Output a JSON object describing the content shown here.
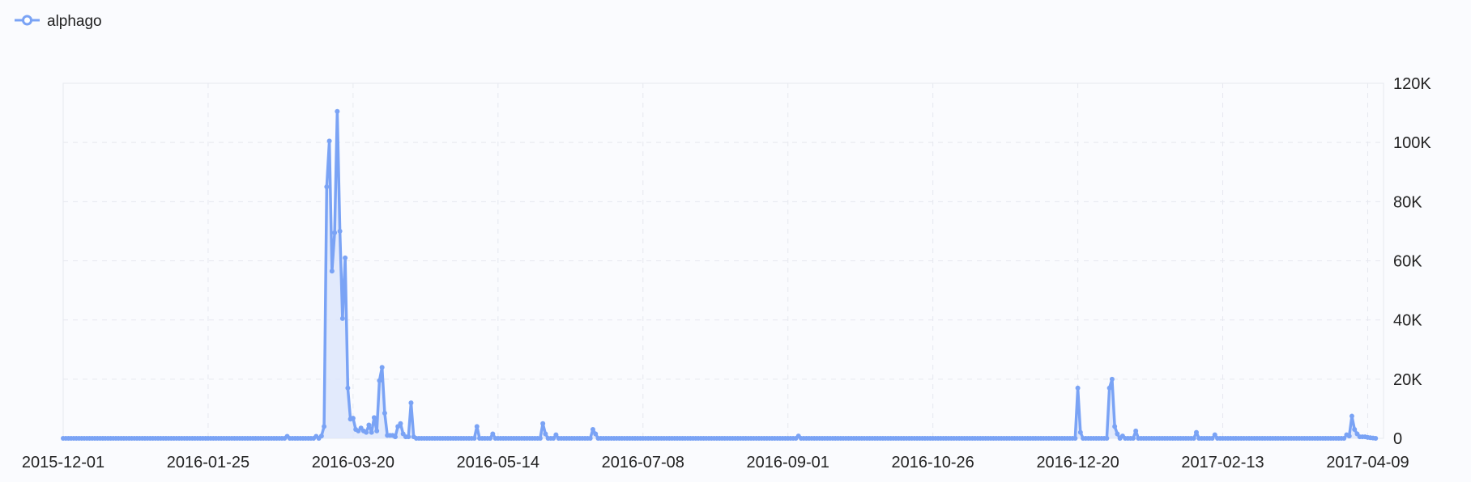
{
  "legend": {
    "series_name": "alphago"
  },
  "colors": {
    "series": "#7aa3f5",
    "area": "#dde6fb",
    "grid": "#e6e8ef",
    "background": "#fafbfe"
  },
  "chart_data": {
    "type": "area",
    "x_type": "date",
    "x_range": [
      "2015-12-01",
      "2017-04-15"
    ],
    "y_range": [
      0,
      120000
    ],
    "x_ticks": [
      "2015-12-01",
      "2016-01-25",
      "2016-03-20",
      "2016-05-14",
      "2016-07-08",
      "2016-09-01",
      "2016-10-26",
      "2016-12-20",
      "2017-02-13",
      "2017-04-09"
    ],
    "y_ticks": [
      {
        "value": 0,
        "label": "0"
      },
      {
        "value": 20000,
        "label": "20K"
      },
      {
        "value": 40000,
        "label": "40K"
      },
      {
        "value": 60000,
        "label": "60K"
      },
      {
        "value": 80000,
        "label": "80K"
      },
      {
        "value": 100000,
        "label": "100K"
      },
      {
        "value": 120000,
        "label": "120K"
      }
    ],
    "grid": true,
    "legend_position": "top-left",
    "series": [
      {
        "name": "alphago",
        "points": [
          [
            "2015-12-01",
            0
          ],
          [
            "2016-02-23",
            0
          ],
          [
            "2016-02-24",
            700
          ],
          [
            "2016-02-25",
            0
          ],
          [
            "2016-03-05",
            0
          ],
          [
            "2016-03-06",
            700
          ],
          [
            "2016-03-07",
            0
          ],
          [
            "2016-03-08",
            800
          ],
          [
            "2016-03-09",
            4000
          ],
          [
            "2016-03-10",
            85000
          ],
          [
            "2016-03-11",
            100500
          ],
          [
            "2016-03-12",
            56500
          ],
          [
            "2016-03-13",
            69500
          ],
          [
            "2016-03-14",
            110500
          ],
          [
            "2016-03-15",
            70000
          ],
          [
            "2016-03-16",
            40500
          ],
          [
            "2016-03-17",
            61000
          ],
          [
            "2016-03-18",
            17000
          ],
          [
            "2016-03-19",
            6500
          ],
          [
            "2016-03-20",
            6800
          ],
          [
            "2016-03-21",
            3000
          ],
          [
            "2016-03-22",
            2500
          ],
          [
            "2016-03-23",
            3500
          ],
          [
            "2016-03-24",
            2500
          ],
          [
            "2016-03-25",
            2000
          ],
          [
            "2016-03-26",
            4500
          ],
          [
            "2016-03-27",
            2000
          ],
          [
            "2016-03-28",
            7000
          ],
          [
            "2016-03-29",
            2500
          ],
          [
            "2016-03-30",
            19500
          ],
          [
            "2016-03-31",
            24000
          ],
          [
            "2016-04-01",
            8500
          ],
          [
            "2016-04-02",
            1000
          ],
          [
            "2016-04-03",
            1000
          ],
          [
            "2016-04-04",
            1000
          ],
          [
            "2016-04-05",
            500
          ],
          [
            "2016-04-06",
            4000
          ],
          [
            "2016-04-07",
            5000
          ],
          [
            "2016-04-08",
            1500
          ],
          [
            "2016-04-09",
            500
          ],
          [
            "2016-04-10",
            500
          ],
          [
            "2016-04-11",
            12000
          ],
          [
            "2016-04-12",
            500
          ],
          [
            "2016-04-13",
            0
          ],
          [
            "2016-05-05",
            0
          ],
          [
            "2016-05-06",
            4000
          ],
          [
            "2016-05-07",
            0
          ],
          [
            "2016-05-11",
            0
          ],
          [
            "2016-05-12",
            1500
          ],
          [
            "2016-05-13",
            0
          ],
          [
            "2016-05-30",
            0
          ],
          [
            "2016-05-31",
            5000
          ],
          [
            "2016-06-01",
            1500
          ],
          [
            "2016-06-02",
            0
          ],
          [
            "2016-06-04",
            0
          ],
          [
            "2016-06-05",
            1200
          ],
          [
            "2016-06-06",
            0
          ],
          [
            "2016-06-18",
            0
          ],
          [
            "2016-06-19",
            3000
          ],
          [
            "2016-06-20",
            1500
          ],
          [
            "2016-06-21",
            0
          ],
          [
            "2016-09-01",
            0
          ],
          [
            "2016-09-04",
            0
          ],
          [
            "2016-09-05",
            800
          ],
          [
            "2016-09-06",
            0
          ],
          [
            "2016-12-19",
            0
          ],
          [
            "2016-12-20",
            17000
          ],
          [
            "2016-12-21",
            2000
          ],
          [
            "2016-12-22",
            0
          ],
          [
            "2016-12-31",
            0
          ],
          [
            "2017-01-01",
            17000
          ],
          [
            "2017-01-02",
            20000
          ],
          [
            "2017-01-03",
            4000
          ],
          [
            "2017-01-04",
            1500
          ],
          [
            "2017-01-05",
            0
          ],
          [
            "2017-01-06",
            800
          ],
          [
            "2017-01-07",
            0
          ],
          [
            "2017-01-10",
            0
          ],
          [
            "2017-01-11",
            2500
          ],
          [
            "2017-01-12",
            0
          ],
          [
            "2017-02-02",
            0
          ],
          [
            "2017-02-03",
            2000
          ],
          [
            "2017-02-04",
            0
          ],
          [
            "2017-02-09",
            0
          ],
          [
            "2017-02-10",
            1200
          ],
          [
            "2017-02-11",
            0
          ],
          [
            "2017-03-31",
            0
          ],
          [
            "2017-04-01",
            1200
          ],
          [
            "2017-04-02",
            800
          ],
          [
            "2017-04-03",
            7500
          ],
          [
            "2017-04-04",
            3000
          ],
          [
            "2017-04-05",
            1500
          ],
          [
            "2017-04-06",
            500
          ],
          [
            "2017-04-08",
            500
          ],
          [
            "2017-04-09",
            300
          ],
          [
            "2017-04-12",
            0
          ]
        ]
      }
    ]
  }
}
